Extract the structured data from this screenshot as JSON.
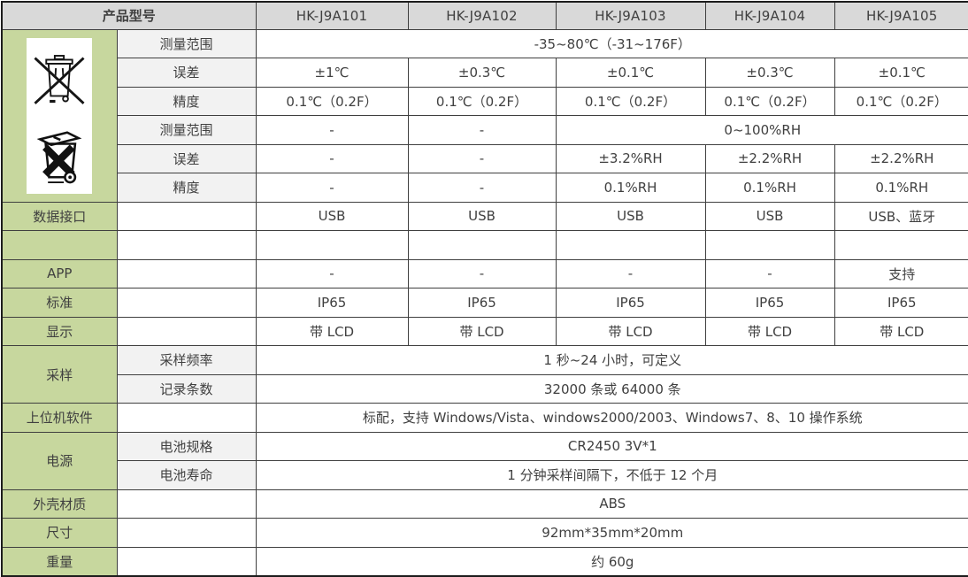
{
  "colors": {
    "header_bg": "#d9d9d9",
    "category_bg": "#c7d79e",
    "sublabel_bg": "#f2f2f2",
    "cell_bg": "#ffffff",
    "border": "#3f3f3f",
    "text": "#404040"
  },
  "table": {
    "header": {
      "product_model_label": "产品型号",
      "models": [
        "HK-J9A101",
        "HK-J9A102",
        "HK-J9A103",
        "HK-J9A104",
        "HK-J9A105"
      ]
    },
    "icons": [
      "weee-crossed-wheelie-bin-icon",
      "battery-crossed-bin-icon"
    ],
    "rows": [
      {
        "name": "temp-range",
        "cells": [
          {
            "k": "icons",
            "rs": 6,
            "n": "disposal-icons-cell",
            "icons": [
              "weee-crossed-wheelie-bin-icon",
              "battery-crossed-bin-icon"
            ]
          },
          {
            "k": "sublabel",
            "t": "测量范围",
            "n": "temp-range-label"
          },
          {
            "k": "value",
            "t": "-35~80℃（-31~176F）",
            "cs": 5,
            "n": "temp-range-value"
          }
        ]
      },
      {
        "name": "temp-error",
        "cells": [
          {
            "k": "sublabel",
            "t": "误差",
            "n": "temp-error-label"
          },
          {
            "k": "value",
            "t": "±1℃"
          },
          {
            "k": "value",
            "t": "±0.3℃"
          },
          {
            "k": "value",
            "t": "±0.1℃"
          },
          {
            "k": "value",
            "t": "±0.3℃"
          },
          {
            "k": "value",
            "t": "±0.1℃"
          }
        ]
      },
      {
        "name": "temp-resolution",
        "cells": [
          {
            "k": "sublabel",
            "t": "精度",
            "n": "temp-resolution-label"
          },
          {
            "k": "value",
            "t": "0.1℃（0.2F）"
          },
          {
            "k": "value",
            "t": "0.1℃（0.2F）"
          },
          {
            "k": "value",
            "t": "0.1℃（0.2F）"
          },
          {
            "k": "value",
            "t": "0.1℃（0.2F）"
          },
          {
            "k": "value",
            "t": "0.1℃（0.2F）"
          }
        ]
      },
      {
        "name": "humidity-range",
        "cells": [
          {
            "k": "sublabel",
            "t": "测量范围",
            "n": "humidity-range-label"
          },
          {
            "k": "value",
            "t": "-"
          },
          {
            "k": "value",
            "t": "-"
          },
          {
            "k": "value",
            "t": "0~100%RH",
            "cs": 3,
            "n": "humidity-range-value"
          }
        ]
      },
      {
        "name": "humidity-error",
        "cells": [
          {
            "k": "sublabel",
            "t": "误差",
            "n": "humidity-error-label"
          },
          {
            "k": "value",
            "t": "-"
          },
          {
            "k": "value",
            "t": "-"
          },
          {
            "k": "value",
            "t": "±3.2%RH"
          },
          {
            "k": "value",
            "t": "±2.2%RH"
          },
          {
            "k": "value",
            "t": "±2.2%RH"
          }
        ]
      },
      {
        "name": "humidity-resolution",
        "cells": [
          {
            "k": "sublabel",
            "t": "精度",
            "n": "humidity-resolution-label"
          },
          {
            "k": "value",
            "t": "-"
          },
          {
            "k": "value",
            "t": "-"
          },
          {
            "k": "value",
            "t": "0.1%RH"
          },
          {
            "k": "value",
            "t": "0.1%RH"
          },
          {
            "k": "value",
            "t": "0.1%RH"
          }
        ]
      },
      {
        "name": "data-interface",
        "cells": [
          {
            "k": "category",
            "t": "数据接口",
            "n": "data-interface-label"
          },
          {
            "k": "sublabel-empty",
            "t": ""
          },
          {
            "k": "value",
            "t": "USB"
          },
          {
            "k": "value",
            "t": "USB"
          },
          {
            "k": "value",
            "t": "USB"
          },
          {
            "k": "value",
            "t": "USB"
          },
          {
            "k": "value",
            "t": "USB、蓝牙"
          }
        ]
      },
      {
        "name": "spacer",
        "cells": [
          {
            "k": "category",
            "t": "",
            "n": "spacer-category-cell"
          },
          {
            "k": "sublabel-empty",
            "t": ""
          },
          {
            "k": "value",
            "t": ""
          },
          {
            "k": "value",
            "t": ""
          },
          {
            "k": "value",
            "t": ""
          },
          {
            "k": "value",
            "t": ""
          },
          {
            "k": "value",
            "t": ""
          }
        ]
      },
      {
        "name": "app",
        "cells": [
          {
            "k": "category",
            "t": "APP",
            "n": "app-label"
          },
          {
            "k": "sublabel-empty",
            "t": ""
          },
          {
            "k": "value",
            "t": "-"
          },
          {
            "k": "value",
            "t": "-"
          },
          {
            "k": "value",
            "t": "-"
          },
          {
            "k": "value",
            "t": "-"
          },
          {
            "k": "value",
            "t": "支持"
          }
        ]
      },
      {
        "name": "standard",
        "cells": [
          {
            "k": "category",
            "t": "标准",
            "n": "standard-label"
          },
          {
            "k": "sublabel-empty",
            "t": ""
          },
          {
            "k": "value",
            "t": "IP65"
          },
          {
            "k": "value",
            "t": "IP65"
          },
          {
            "k": "value",
            "t": "IP65"
          },
          {
            "k": "value",
            "t": "IP65"
          },
          {
            "k": "value",
            "t": "IP65"
          }
        ]
      },
      {
        "name": "display",
        "cells": [
          {
            "k": "category",
            "t": "显示",
            "n": "display-label"
          },
          {
            "k": "sublabel-empty",
            "t": ""
          },
          {
            "k": "value",
            "t": "带 LCD"
          },
          {
            "k": "value",
            "t": "带 LCD"
          },
          {
            "k": "value",
            "t": "带 LCD"
          },
          {
            "k": "value",
            "t": "带 LCD"
          },
          {
            "k": "value",
            "t": "带 LCD"
          }
        ]
      },
      {
        "name": "sampling-rate",
        "cells": [
          {
            "k": "category",
            "t": "采样",
            "rs": 2,
            "n": "sampling-label"
          },
          {
            "k": "sublabel",
            "t": "采样频率",
            "n": "sampling-rate-label"
          },
          {
            "k": "value",
            "t": "1 秒~24 小时，可定义",
            "cs": 5,
            "n": "sampling-rate-value"
          }
        ]
      },
      {
        "name": "record-count",
        "cells": [
          {
            "k": "sublabel",
            "t": "记录条数",
            "n": "record-count-label"
          },
          {
            "k": "value",
            "t": "32000 条或 64000 条",
            "cs": 5,
            "n": "record-count-value"
          }
        ]
      },
      {
        "name": "host-software",
        "cells": [
          {
            "k": "category",
            "t": "上位机软件",
            "n": "host-software-label"
          },
          {
            "k": "sublabel-empty",
            "t": ""
          },
          {
            "k": "value",
            "t": "标配，支持 Windows/Vista、windows2000/2003、Windows7、8、10 操作系统",
            "cs": 5,
            "n": "host-software-value"
          }
        ]
      },
      {
        "name": "battery-spec",
        "cells": [
          {
            "k": "category",
            "t": "电源",
            "rs": 2,
            "n": "power-label"
          },
          {
            "k": "sublabel",
            "t": "电池规格",
            "n": "battery-spec-label"
          },
          {
            "k": "value",
            "t": "CR2450 3V*1",
            "cs": 5,
            "n": "battery-spec-value"
          }
        ]
      },
      {
        "name": "battery-life",
        "cells": [
          {
            "k": "sublabel",
            "t": "电池寿命",
            "n": "battery-life-label"
          },
          {
            "k": "value",
            "t": "1 分钟采样间隔下，不低于 12 个月",
            "cs": 5,
            "n": "battery-life-value"
          }
        ]
      },
      {
        "name": "case-material",
        "cells": [
          {
            "k": "category",
            "t": "外壳材质",
            "n": "case-material-label"
          },
          {
            "k": "sublabel-empty",
            "t": ""
          },
          {
            "k": "value",
            "t": "ABS",
            "cs": 5,
            "n": "case-material-value"
          }
        ]
      },
      {
        "name": "dimensions",
        "cells": [
          {
            "k": "category",
            "t": "尺寸",
            "n": "dimensions-label"
          },
          {
            "k": "sublabel-empty",
            "t": ""
          },
          {
            "k": "value",
            "t": "92mm*35mm*20mm",
            "cs": 5,
            "n": "dimensions-value"
          }
        ]
      },
      {
        "name": "weight",
        "cells": [
          {
            "k": "category",
            "t": "重量",
            "n": "weight-label"
          },
          {
            "k": "sublabel-empty",
            "t": ""
          },
          {
            "k": "value",
            "t": "约 60g",
            "cs": 5,
            "n": "weight-value"
          }
        ]
      }
    ]
  }
}
